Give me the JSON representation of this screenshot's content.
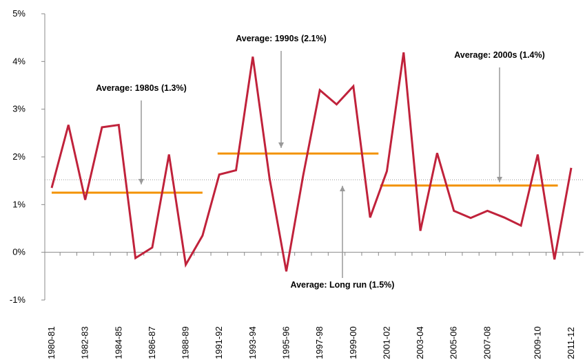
{
  "chart_data": {
    "type": "line",
    "categories": [
      "1980-81",
      null,
      "1982-83",
      null,
      "1984-85",
      null,
      "1986-87",
      null,
      "1988-89",
      null,
      "1991-92",
      null,
      "1993-94",
      null,
      "1995-96",
      null,
      "1997-98",
      null,
      "1999-00",
      null,
      "2001-02",
      null,
      "2003-04",
      null,
      "2005-06",
      null,
      "2007-08",
      null,
      null,
      "2009-10",
      null,
      "2011-12"
    ],
    "values": [
      1.35,
      2.67,
      1.1,
      2.62,
      2.67,
      -0.12,
      0.1,
      2.05,
      -0.26,
      0.35,
      1.63,
      1.72,
      4.1,
      1.55,
      -0.4,
      1.6,
      3.4,
      3.1,
      3.48,
      0.73,
      1.7,
      4.19,
      0.45,
      2.08,
      0.87,
      0.72,
      0.87,
      0.73,
      0.56,
      2.05,
      -0.15,
      1.77
    ],
    "color": "#c0223b",
    "ylim": [
      -1,
      5
    ],
    "yticks": [
      {
        "value": -1,
        "label": "-1%"
      },
      {
        "value": 0,
        "label": "0%"
      },
      {
        "value": 1,
        "label": "1%"
      },
      {
        "value": 2,
        "label": "2%"
      },
      {
        "value": 3,
        "label": "3%"
      },
      {
        "value": 4,
        "label": "4%"
      },
      {
        "value": 5,
        "label": "5%"
      }
    ],
    "averages": [
      {
        "text": "Average: 1980s (1.3%)",
        "value": 1.25,
        "color": "#f39200"
      },
      {
        "text": "Average: 1990s (2.1%)",
        "value": 2.07,
        "color": "#f39200"
      },
      {
        "text": "Average: 2000s (1.4%)",
        "value": 1.4,
        "color": "#f39200"
      },
      {
        "text": "Average: Long run (1.5%)",
        "value": 1.52,
        "color": "#999999"
      }
    ]
  }
}
